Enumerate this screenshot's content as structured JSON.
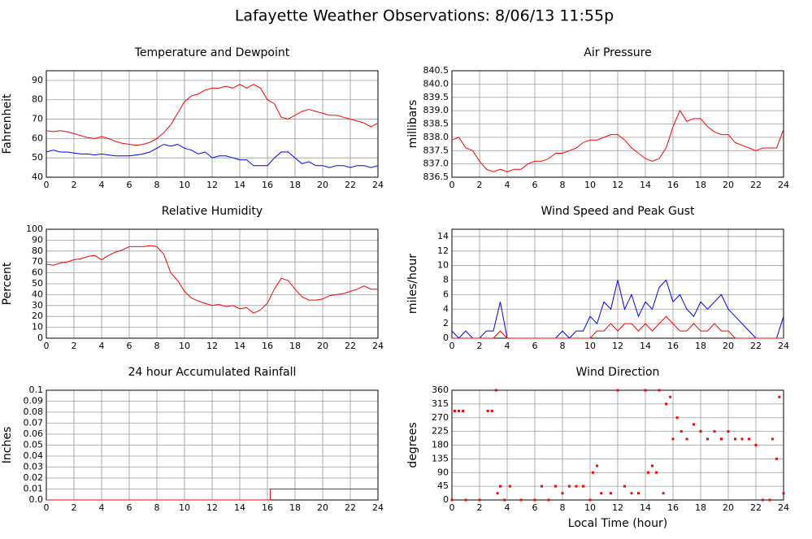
{
  "title": "Lafayette Weather Observations: 8/06/13 11:55p",
  "chart_data": [
    {
      "type": "line",
      "title": "Temperature and Dewpoint",
      "ylabel": "Fahrenheit",
      "xlim": [
        0,
        24
      ],
      "ylim": [
        40,
        95
      ],
      "xticks": [
        0,
        2,
        4,
        6,
        8,
        10,
        12,
        14,
        16,
        18,
        20,
        22,
        24
      ],
      "yticks": [
        40,
        50,
        60,
        70,
        80,
        90
      ],
      "grid": true,
      "x": [
        0,
        0.5,
        1,
        1.5,
        2,
        2.5,
        3,
        3.5,
        4,
        4.5,
        5,
        5.5,
        6,
        6.5,
        7,
        7.5,
        8,
        8.5,
        9,
        9.5,
        10,
        10.5,
        11,
        11.5,
        12,
        12.5,
        13,
        13.5,
        14,
        14.5,
        15,
        15.5,
        16,
        16.5,
        17,
        17.5,
        18,
        18.5,
        19,
        19.5,
        20,
        20.5,
        21,
        21.5,
        22,
        22.5,
        23,
        23.5,
        24
      ],
      "series": [
        {
          "color": "#ff0000",
          "values": [
            64,
            63.5,
            64,
            63.5,
            62.5,
            61.5,
            60.5,
            60,
            61,
            60,
            58.5,
            57.5,
            57,
            56.5,
            57,
            58,
            60,
            63,
            67,
            73,
            79,
            82,
            83,
            85,
            86,
            86,
            87,
            86,
            88,
            86,
            88,
            86,
            80,
            78,
            71,
            70,
            72,
            74,
            75,
            74,
            73,
            72,
            72,
            71,
            70,
            69,
            68,
            66,
            68
          ]
        },
        {
          "color": "#0000ff",
          "values": [
            53,
            54,
            53,
            53,
            52.5,
            52,
            52,
            51.5,
            52,
            51.5,
            51,
            51,
            51,
            51.5,
            52,
            53,
            55,
            57,
            56,
            57,
            55,
            54,
            52,
            53,
            50,
            51,
            51,
            50,
            49,
            49,
            46,
            46,
            46,
            50,
            53,
            53,
            50,
            47,
            48,
            46,
            46,
            45,
            46,
            46,
            45,
            46,
            46,
            45,
            46
          ]
        }
      ]
    },
    {
      "type": "line",
      "title": "Air Pressure",
      "ylabel": "millibars",
      "xlim": [
        0,
        24
      ],
      "ylim": [
        836.5,
        840.5
      ],
      "xticks": [
        0,
        2,
        4,
        6,
        8,
        10,
        12,
        14,
        16,
        18,
        20,
        22,
        24
      ],
      "yticks": [
        836.5,
        {
          "value": 837,
          "label": "837.0"
        },
        837.5,
        {
          "value": 838,
          "label": "838.0"
        },
        838.5,
        {
          "value": 839,
          "label": "839.0"
        },
        839.5,
        {
          "value": 840,
          "label": "840.0"
        },
        840.5
      ],
      "grid": true,
      "x": [
        0,
        0.5,
        1,
        1.5,
        2,
        2.5,
        3,
        3.5,
        4,
        4.5,
        5,
        5.5,
        6,
        6.5,
        7,
        7.5,
        8,
        8.5,
        9,
        9.5,
        10,
        10.5,
        11,
        11.5,
        12,
        12.5,
        13,
        13.5,
        14,
        14.5,
        15,
        15.5,
        16,
        16.5,
        17,
        17.5,
        18,
        18.5,
        19,
        19.5,
        20,
        20.5,
        21,
        21.5,
        22,
        22.5,
        23,
        23.5,
        24
      ],
      "series": [
        {
          "color": "#ff0000",
          "values": [
            837.9,
            838,
            837.6,
            837.5,
            837.1,
            836.8,
            836.7,
            836.8,
            836.7,
            836.8,
            836.8,
            837,
            837.1,
            837.1,
            837.2,
            837.4,
            837.4,
            837.5,
            837.6,
            837.8,
            837.9,
            837.9,
            838,
            838.1,
            838.1,
            837.9,
            837.6,
            837.4,
            837.2,
            837.1,
            837.2,
            837.6,
            838.4,
            839,
            838.6,
            838.7,
            838.7,
            838.4,
            838.2,
            838.1,
            838.1,
            837.8,
            837.7,
            837.6,
            837.5,
            837.6,
            837.6,
            837.6,
            838.3
          ]
        }
      ]
    },
    {
      "type": "line",
      "title": "Relative Humidity",
      "ylabel": "Percent",
      "xlim": [
        0,
        24
      ],
      "ylim": [
        0,
        100
      ],
      "xticks": [
        0,
        2,
        4,
        6,
        8,
        10,
        12,
        14,
        16,
        18,
        20,
        22,
        24
      ],
      "yticks": [
        0,
        10,
        20,
        30,
        40,
        50,
        60,
        70,
        80,
        90,
        100
      ],
      "grid": true,
      "x": [
        0,
        0.5,
        1,
        1.5,
        2,
        2.5,
        3,
        3.5,
        4,
        4.5,
        5,
        5.5,
        6,
        6.5,
        7,
        7.5,
        8,
        8.5,
        9,
        9.5,
        10,
        10.5,
        11,
        11.5,
        12,
        12.5,
        13,
        13.5,
        14,
        14.5,
        15,
        15.5,
        16,
        16.5,
        17,
        17.5,
        18,
        18.5,
        19,
        19.5,
        20,
        20.5,
        21,
        21.5,
        22,
        22.5,
        23,
        23.5,
        24
      ],
      "series": [
        {
          "color": "#ff0000",
          "values": [
            68,
            67,
            69,
            70,
            72,
            73,
            75,
            76,
            72,
            76,
            79,
            81,
            84,
            84,
            84,
            85,
            84,
            77,
            60,
            53,
            43,
            37,
            34,
            32,
            30,
            31,
            29,
            30,
            27,
            28,
            23,
            26,
            32,
            45,
            55,
            53,
            45,
            38,
            35,
            35,
            36,
            39,
            40,
            41,
            43,
            45,
            48,
            45,
            45
          ]
        }
      ]
    },
    {
      "type": "line",
      "title": "Wind Speed and Peak Gust",
      "ylabel": "miles/hour",
      "xlim": [
        0,
        24
      ],
      "ylim": [
        0,
        15
      ],
      "xticks": [
        0,
        2,
        4,
        6,
        8,
        10,
        12,
        14,
        16,
        18,
        20,
        22,
        24
      ],
      "yticks": [
        0,
        2,
        4,
        6,
        8,
        10,
        12,
        14
      ],
      "grid": true,
      "x": [
        0,
        0.5,
        1,
        1.5,
        2,
        2.5,
        3,
        3.5,
        4,
        4.5,
        5,
        5.5,
        6,
        6.5,
        7,
        7.5,
        8,
        8.5,
        9,
        9.5,
        10,
        10.5,
        11,
        11.5,
        12,
        12.5,
        13,
        13.5,
        14,
        14.5,
        15,
        15.5,
        16,
        16.5,
        17,
        17.5,
        18,
        18.5,
        19,
        19.5,
        20,
        20.5,
        21,
        21.5,
        22,
        22.5,
        23,
        23.5,
        24
      ],
      "series": [
        {
          "color": "#0000ff",
          "values": [
            1,
            0,
            1,
            0,
            0,
            1,
            1,
            5,
            0,
            0,
            0,
            0,
            0,
            0,
            0,
            0,
            1,
            0,
            1,
            1,
            3,
            2,
            5,
            4,
            8,
            4,
            6,
            3,
            5,
            4,
            7,
            8,
            5,
            6,
            4,
            3,
            5,
            4,
            5,
            6,
            4,
            3,
            2,
            1,
            0,
            0,
            0,
            0,
            3
          ]
        },
        {
          "color": "#ff0000",
          "values": [
            0,
            0,
            0,
            0,
            0,
            0,
            0,
            1,
            0,
            0,
            0,
            0,
            0,
            0,
            0,
            0,
            0,
            0,
            0,
            0,
            0,
            1,
            1,
            2,
            1,
            2,
            2,
            1,
            2,
            1,
            2,
            3,
            2,
            1,
            1,
            2,
            1,
            1,
            2,
            1,
            1,
            0,
            0,
            0,
            0,
            0,
            0,
            0,
            0
          ]
        }
      ]
    },
    {
      "type": "line",
      "title": "24 hour Accumulated Rainfall",
      "ylabel": "Inches",
      "xlim": [
        0,
        24
      ],
      "ylim": [
        0,
        0.1
      ],
      "xticks": [
        0,
        2,
        4,
        6,
        8,
        10,
        12,
        14,
        16,
        18,
        20,
        22,
        24
      ],
      "yticks": [
        {
          "value": 0,
          "label": "0.0"
        },
        0.01,
        0.02,
        0.03,
        0.04,
        0.05,
        0.06,
        0.07,
        0.08,
        0.09,
        0.1
      ],
      "grid": true,
      "x": [
        0,
        16.2,
        16.2,
        24
      ],
      "series": [
        {
          "color": "#ff0000",
          "values": [
            0,
            0,
            0.01,
            0.01
          ]
        }
      ]
    },
    {
      "type": "scatter",
      "title": "Wind Direction",
      "ylabel": "degrees",
      "xlabel": "Local Time (hour)",
      "xlim": [
        0,
        24
      ],
      "ylim": [
        0,
        360
      ],
      "xticks": [
        0,
        2,
        4,
        6,
        8,
        10,
        12,
        14,
        16,
        18,
        20,
        22,
        24
      ],
      "yticks": [
        0,
        45,
        90,
        135,
        180,
        225,
        270,
        315,
        360
      ],
      "grid": true,
      "x": [
        0,
        0.2,
        0.5,
        0.8,
        1,
        2,
        2.6,
        2.9,
        3.2,
        3.3,
        3.5,
        3.8,
        4.2,
        5,
        6,
        6.5,
        7,
        7.5,
        8,
        8.5,
        9,
        9.5,
        10,
        10.2,
        10.5,
        10.8,
        11.5,
        12,
        12.5,
        13,
        13.5,
        14,
        14.2,
        14.5,
        14.8,
        15,
        15.3,
        15.5,
        15.8,
        16,
        16.3,
        16.6,
        17,
        17.5,
        18,
        18.5,
        19,
        19.5,
        20,
        20.5,
        21,
        21.5,
        22,
        22.5,
        23,
        23.2,
        23.5,
        23.7,
        24
      ],
      "series": [
        {
          "color": "#ff0000",
          "values": [
            0,
            292,
            292,
            292,
            0,
            0,
            292,
            292,
            360,
            22,
            45,
            0,
            45,
            0,
            0,
            45,
            0,
            45,
            22,
            45,
            45,
            45,
            0,
            90,
            112,
            22,
            22,
            360,
            45,
            22,
            22,
            360,
            90,
            112,
            90,
            360,
            22,
            315,
            338,
            200,
            270,
            225,
            200,
            248,
            225,
            200,
            225,
            200,
            225,
            200,
            200,
            200,
            180,
            0,
            0,
            200,
            135,
            338,
            22
          ]
        }
      ]
    }
  ]
}
